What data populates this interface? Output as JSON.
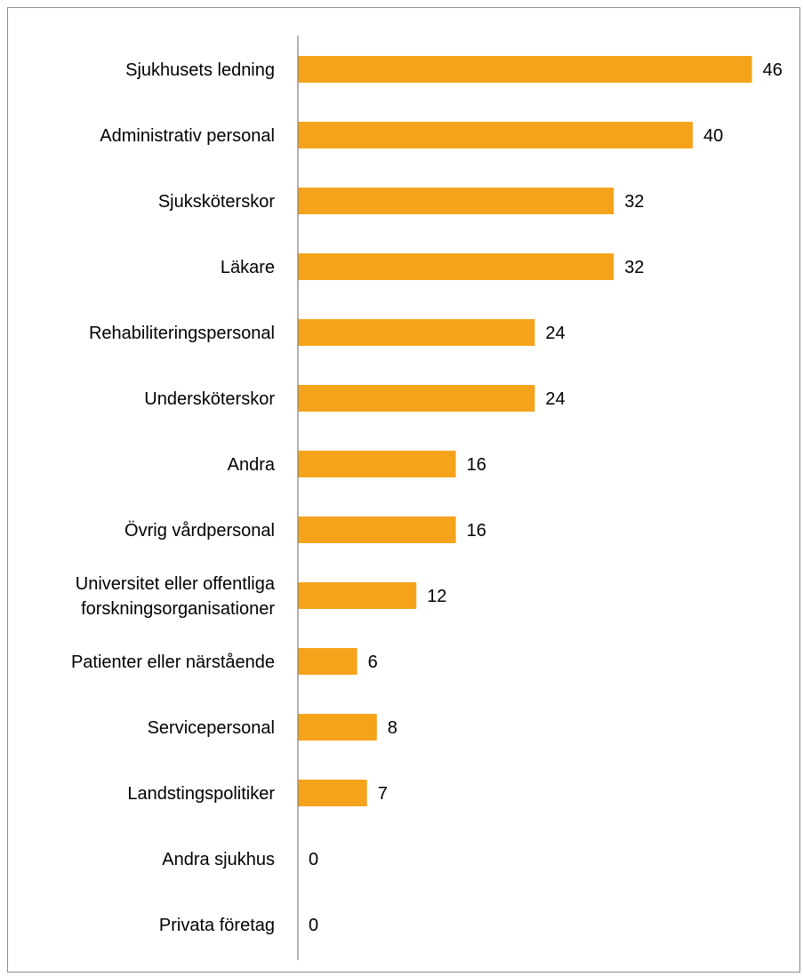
{
  "chart_data": {
    "type": "bar",
    "orientation": "horizontal",
    "categories": [
      [
        "Sjukhusets ledning"
      ],
      [
        "Administrativ personal"
      ],
      [
        "Sjuksköterskor"
      ],
      [
        "Läkare"
      ],
      [
        "Rehabiliteringspersonal"
      ],
      [
        "Undersköterskor"
      ],
      [
        "Andra"
      ],
      [
        "Övrig vårdpersonal"
      ],
      [
        "Universitet eller offentliga",
        "forskningsorganisationer"
      ],
      [
        "Patienter eller närstående"
      ],
      [
        "Servicepersonal"
      ],
      [
        "Landstingspolitiker"
      ],
      [
        "Andra sjukhus"
      ],
      [
        "Privata företag"
      ]
    ],
    "values": [
      46,
      40,
      32,
      32,
      24,
      24,
      16,
      16,
      12,
      6,
      8,
      7,
      0,
      0
    ],
    "bar_color": "#F5A31A",
    "data_labels": true,
    "grid": false,
    "legend": "none"
  }
}
